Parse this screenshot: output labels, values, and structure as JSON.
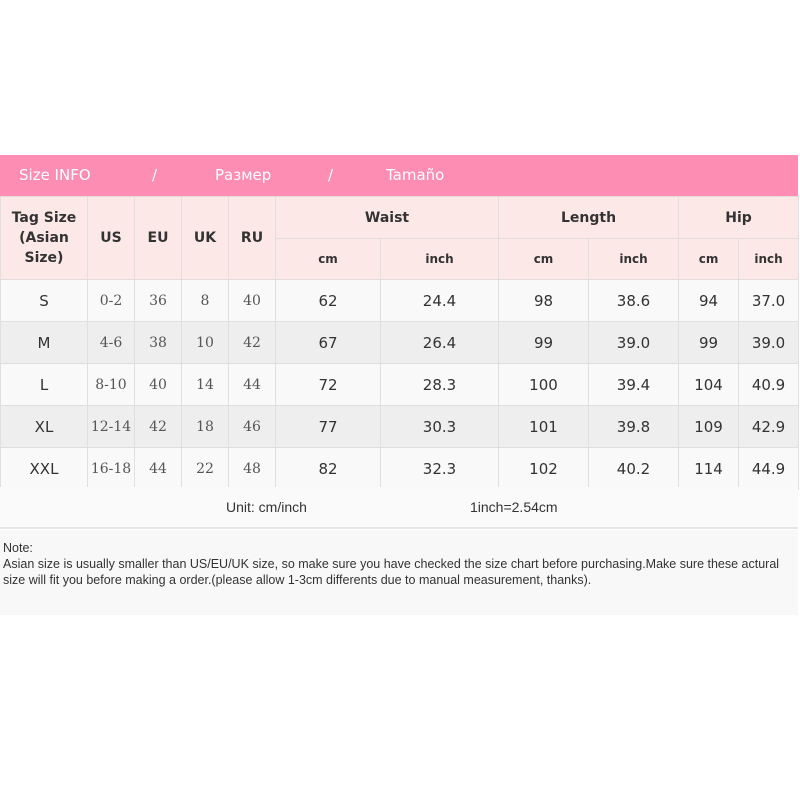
{
  "banner": {
    "title": "Size INFO",
    "sep1": "/",
    "ru": "Размер",
    "sep2": "/",
    "es": "Tamaño"
  },
  "headers": {
    "tag": "Tag Size (Asian Size)",
    "us": "US",
    "eu": "EU",
    "uk": "UK",
    "ru": "RU",
    "waist": "Waist",
    "length": "Length",
    "hip": "Hip",
    "cm": "cm",
    "inch": "inch"
  },
  "rows": [
    [
      "S",
      "0-2",
      "36",
      "8",
      "40",
      "62",
      "24.4",
      "98",
      "38.6",
      "94",
      "37.0"
    ],
    [
      "M",
      "4-6",
      "38",
      "10",
      "42",
      "67",
      "26.4",
      "99",
      "39.0",
      "99",
      "39.0"
    ],
    [
      "L",
      "8-10",
      "40",
      "14",
      "44",
      "72",
      "28.3",
      "100",
      "39.4",
      "104",
      "40.9"
    ],
    [
      "XL",
      "12-14",
      "42",
      "18",
      "46",
      "77",
      "30.3",
      "101",
      "39.8",
      "109",
      "42.9"
    ],
    [
      "XXL",
      "16-18",
      "44",
      "22",
      "48",
      "82",
      "32.3",
      "102",
      "40.2",
      "114",
      "44.9"
    ]
  ],
  "unit": {
    "label": "Unit: cm/inch",
    "conversion": "1inch=2.54cm"
  },
  "note": {
    "title": "Note:",
    "text": "Asian size is usually smaller than US/EU/UK size, so make sure you have checked the size chart before purchasing.Make sure these actural size will fit you before making a order.(please allow 1-3cm differents due to manual measurement, thanks)."
  },
  "colors": {
    "banner": "#fd8db3",
    "header": "#fde8e8"
  }
}
